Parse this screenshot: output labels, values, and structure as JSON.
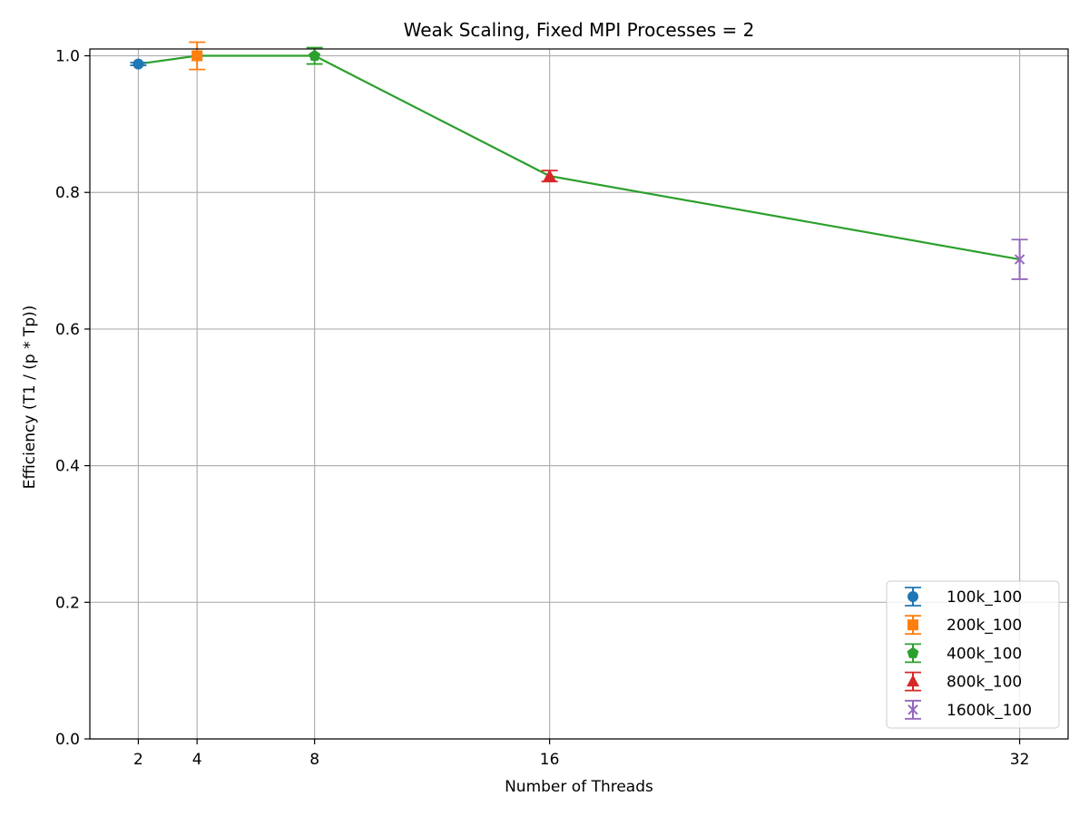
{
  "chart_data": {
    "type": "line",
    "title": "Weak Scaling, Fixed MPI Processes = 2",
    "xlabel": "Number of Threads",
    "ylabel": "Efficiency (T1 / (p * Tp))",
    "xlim": [
      0.35,
      33.65
    ],
    "ylim": [
      0.0,
      1.01
    ],
    "x_ticks": [
      2,
      4,
      8,
      16,
      32
    ],
    "y_ticks": [
      0.0,
      0.2,
      0.4,
      0.6,
      0.8,
      1.0
    ],
    "y_tick_labels": [
      "0.0",
      "0.2",
      "0.4",
      "0.6",
      "0.8",
      "1.0"
    ],
    "grid": true,
    "legend_position": "lower-right",
    "line": {
      "color": "#2ca02c",
      "x": [
        2,
        4,
        8,
        16,
        32
      ],
      "y": [
        0.988,
        1.0,
        1.0,
        0.824,
        0.702
      ]
    },
    "series": [
      {
        "name": "100k_100",
        "x": 2,
        "y": 0.988,
        "err": 0.002,
        "color": "#1f77b4",
        "marker": "circle"
      },
      {
        "name": "200k_100",
        "x": 4,
        "y": 1.0,
        "err": 0.02,
        "color": "#ff7f0e",
        "marker": "square"
      },
      {
        "name": "400k_100",
        "x": 8,
        "y": 1.0,
        "err": 0.012,
        "color": "#2ca02c",
        "marker": "pentagon"
      },
      {
        "name": "800k_100",
        "x": 16,
        "y": 0.824,
        "err": 0.008,
        "color": "#d62728",
        "marker": "triangle"
      },
      {
        "name": "1600k_100",
        "x": 32,
        "y": 0.702,
        "err": 0.029,
        "color": "#9467bd",
        "marker": "x"
      }
    ]
  }
}
